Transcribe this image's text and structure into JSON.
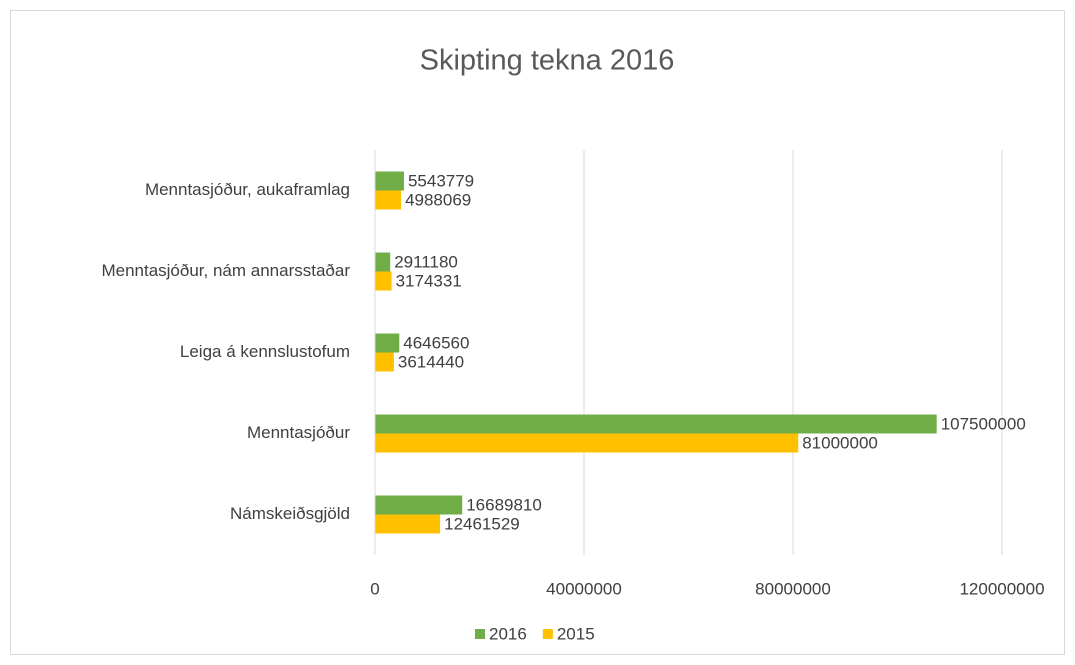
{
  "chart_data": {
    "type": "bar",
    "orientation": "horizontal",
    "title": "Skipting tekna 2016",
    "categories": [
      "Námskeiðsgjöld",
      "Menntasjóður",
      "Leiga á kennslustofum",
      "Menntasjóður, nám annarsstaðar",
      "Menntasjóður, aukaframlag"
    ],
    "series": [
      {
        "name": "2016",
        "color": "#70ad47",
        "values": [
          16689810,
          107500000,
          4646560,
          2911180,
          5543779
        ]
      },
      {
        "name": "2015",
        "color": "#ffc000",
        "values": [
          12461529,
          81000000,
          3614440,
          3174331,
          4988069
        ]
      }
    ],
    "xlim": [
      0,
      120000000
    ],
    "xticks": [
      0,
      40000000,
      80000000,
      120000000
    ],
    "grid": true,
    "legend": "bottom"
  }
}
